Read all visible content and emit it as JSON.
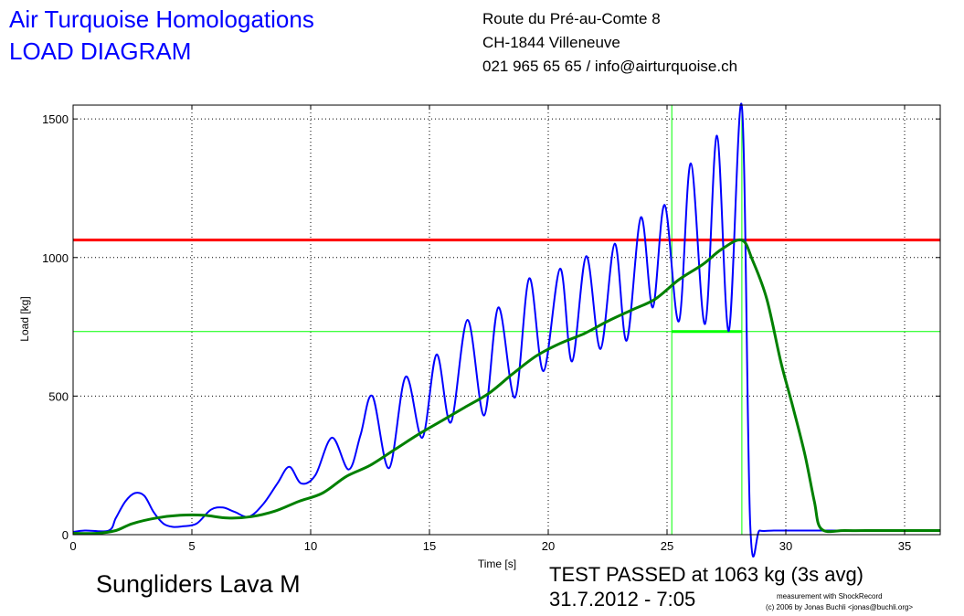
{
  "header": {
    "company": "Air Turquoise Homologations",
    "doc_title": "LOAD DIAGRAM",
    "address_line1": "Route du Pré-au-Comte 8",
    "address_line2": "CH-1844 Villeneuve",
    "contact": "021 965 65 65 / info@airturquoise.ch"
  },
  "footer": {
    "product": "Sungliders Lava M",
    "result": "TEST PASSED at 1063 kg (3s avg)",
    "date": "31.7.2012 - 7:05",
    "credit1": "measurement with ShockRecord",
    "credit2": "(c) 2006 by Jonas Buchli <jonas@buchli.org>"
  },
  "chart_data": {
    "type": "line",
    "xlabel": "Time [s]",
    "ylabel": "Load [kg]",
    "xlim": [
      0,
      36.5
    ],
    "ylim": [
      0,
      1550
    ],
    "xticks": [
      0,
      5,
      10,
      15,
      20,
      25,
      30,
      35
    ],
    "yticks": [
      0,
      500,
      1000,
      1500
    ],
    "grid": true,
    "colors": {
      "raw": "#0000ff",
      "avg": "#008000",
      "limit": "#ff0000",
      "window": "#00ff00"
    },
    "reference_lines": {
      "limit_load": 1063,
      "window_floor": 733,
      "window_start": 25.2,
      "window_end": 28.15,
      "window_top": 1550
    },
    "series": [
      {
        "x": [
          0,
          0.5,
          1.5,
          1.8,
          2.2,
          2.6,
          3.0,
          3.4,
          3.8,
          4.2,
          4.6,
          5.2,
          5.8,
          6.3,
          6.8,
          7.4,
          8.0,
          8.6,
          9.1,
          9.6,
          10.2,
          10.9,
          11.6,
          12.1,
          12.6,
          13.3,
          14.0,
          14.7,
          15.3,
          15.9,
          16.6,
          17.3,
          17.9,
          18.6,
          19.2,
          19.8,
          20.5,
          21.0,
          21.6,
          22.2,
          22.8,
          23.3,
          23.9,
          24.4,
          24.9,
          25.5,
          26.0,
          26.6,
          27.1,
          27.6,
          28.15,
          28.5,
          28.9,
          29.5,
          30.5,
          31.5,
          32.5,
          34,
          36.5
        ],
        "y": [
          10,
          15,
          15,
          60,
          120,
          150,
          140,
          80,
          40,
          28,
          30,
          40,
          90,
          98,
          82,
          65,
          110,
          185,
          245,
          185,
          215,
          350,
          235,
          360,
          500,
          240,
          570,
          350,
          650,
          405,
          775,
          430,
          820,
          495,
          925,
          590,
          960,
          625,
          1005,
          670,
          1050,
          700,
          1145,
          820,
          1190,
          770,
          1340,
          760,
          1440,
          735,
          1545,
          40,
          15,
          15,
          15,
          15,
          15,
          15,
          15
        ]
      },
      {
        "x": [
          0,
          1,
          1.8,
          2.5,
          3.5,
          4.5,
          5.5,
          6.5,
          7.5,
          8.5,
          9.5,
          10.5,
          11.5,
          12.5,
          13.5,
          14.5,
          15.5,
          16.5,
          17.5,
          18.5,
          19.5,
          20.5,
          21.5,
          22.5,
          23.5,
          24.5,
          25.5,
          26.5,
          27.3,
          28.15,
          28.6,
          29.2,
          29.8,
          30.3,
          30.8,
          31.2,
          31.5,
          32.5,
          34,
          36.5
        ],
        "y": [
          5,
          5,
          15,
          40,
          60,
          70,
          70,
          60,
          65,
          85,
          120,
          150,
          210,
          250,
          305,
          360,
          410,
          460,
          510,
          580,
          645,
          690,
          725,
          770,
          810,
          850,
          920,
          975,
          1030,
          1063,
          990,
          850,
          620,
          460,
          290,
          120,
          20,
          15,
          15,
          15
        ]
      }
    ]
  }
}
